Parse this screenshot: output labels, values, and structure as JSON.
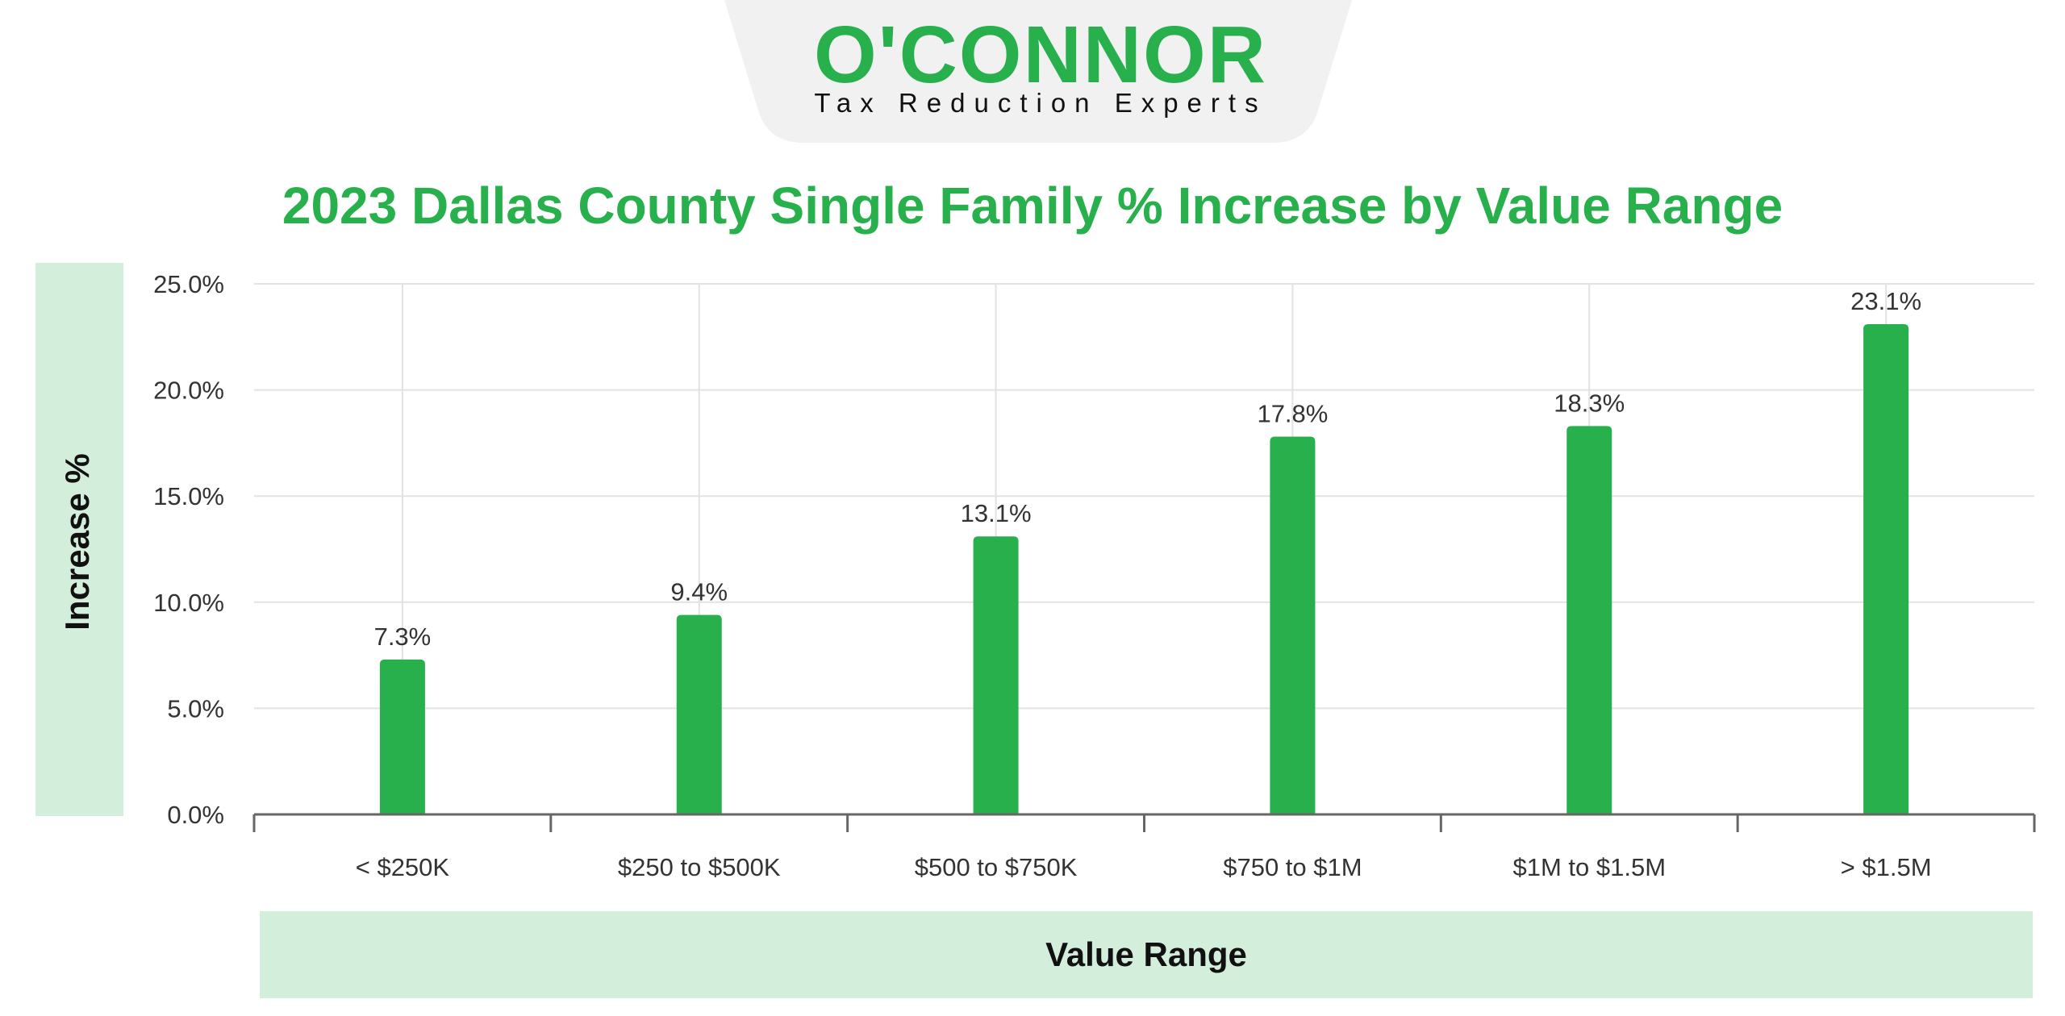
{
  "brand": {
    "name": "O'CONNOR",
    "tagline": "Tax Reduction Experts",
    "colors": {
      "primary": "#27b04c",
      "band": "#d4eedc",
      "tab": "#f1f1f1"
    }
  },
  "chart_data": {
    "type": "bar",
    "title": "2023 Dallas County Single Family % Increase by Value Range",
    "xlabel": "Value Range",
    "ylabel": "Increase %",
    "categories": [
      "< $250K",
      "$250 to $500K",
      "$500 to $750K",
      "$750 to $1M",
      "$1M to $1.5M",
      "> $1.5M"
    ],
    "series": [
      {
        "values": [
          7.3,
          9.4,
          13.1,
          17.8,
          18.3,
          23.1
        ]
      }
    ],
    "data_labels": [
      "7.3%",
      "9.4%",
      "13.1%",
      "17.8%",
      "18.3%",
      "23.1%"
    ],
    "y_ticks": [
      "0.0%",
      "5.0%",
      "10.0%",
      "15.0%",
      "20.0%",
      "25.0%"
    ],
    "ylim": [
      0,
      25
    ],
    "grid": true,
    "legend": "none",
    "bar_color": "#27b04c"
  }
}
